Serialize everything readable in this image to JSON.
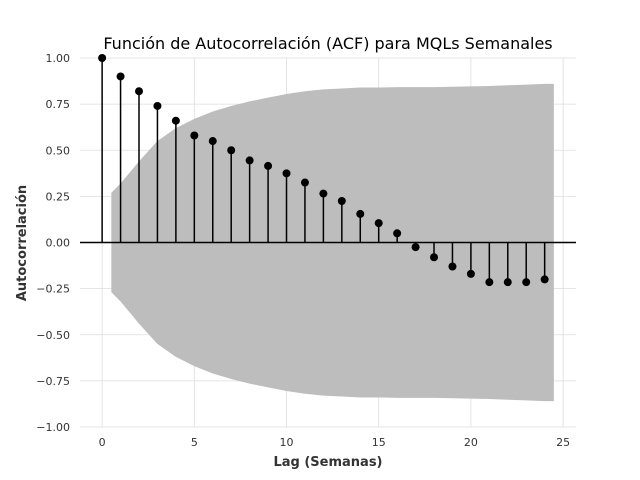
{
  "chart_data": {
    "type": "stem",
    "title": "Función de Autocorrelación (ACF) para MQLs Semanales",
    "xlabel": "Lag (Semanas)",
    "ylabel": "Autocorrelación",
    "xlim": [
      -1.2,
      25.7
    ],
    "ylim": [
      -1.0,
      1.0
    ],
    "x_ticks": [
      0,
      5,
      10,
      15,
      20,
      25
    ],
    "y_ticks": [
      1.0,
      0.75,
      0.5,
      0.25,
      0.0,
      -0.25,
      -0.5,
      -0.75,
      -1.0
    ],
    "x_tick_labels": [
      "0",
      "5",
      "10",
      "15",
      "20",
      "25"
    ],
    "y_tick_labels": [
      "1.00",
      "0.75",
      "0.50",
      "0.25",
      "0.00",
      "−0.25",
      "−0.50",
      "−0.75",
      "−1.00"
    ],
    "grid": true,
    "lags": [
      0,
      1,
      2,
      3,
      4,
      5,
      6,
      7,
      8,
      9,
      10,
      11,
      12,
      13,
      14,
      15,
      16,
      17,
      18,
      19,
      20,
      21,
      22,
      23,
      24
    ],
    "values": [
      1.0,
      0.9,
      0.82,
      0.74,
      0.66,
      0.58,
      0.55,
      0.5,
      0.445,
      0.415,
      0.375,
      0.325,
      0.265,
      0.225,
      0.155,
      0.105,
      0.05,
      -0.025,
      -0.08,
      -0.13,
      -0.17,
      -0.215,
      -0.215,
      -0.215,
      -0.2
    ],
    "confidence_band": {
      "x": [
        0.5,
        1,
        2,
        3,
        4,
        5,
        6,
        7,
        8,
        9,
        10,
        11,
        12,
        13,
        14,
        15,
        16,
        17,
        18,
        19,
        20,
        21,
        22,
        23,
        24,
        24.5
      ],
      "upper": [
        0.27,
        0.32,
        0.44,
        0.55,
        0.62,
        0.67,
        0.71,
        0.74,
        0.765,
        0.785,
        0.805,
        0.82,
        0.83,
        0.835,
        0.84,
        0.84,
        0.842,
        0.842,
        0.842,
        0.844,
        0.846,
        0.848,
        0.852,
        0.856,
        0.86,
        0.86
      ]
    },
    "colors": {
      "stem": "#000000",
      "band": "#bdbdbd",
      "zero_line": "#000000"
    }
  }
}
